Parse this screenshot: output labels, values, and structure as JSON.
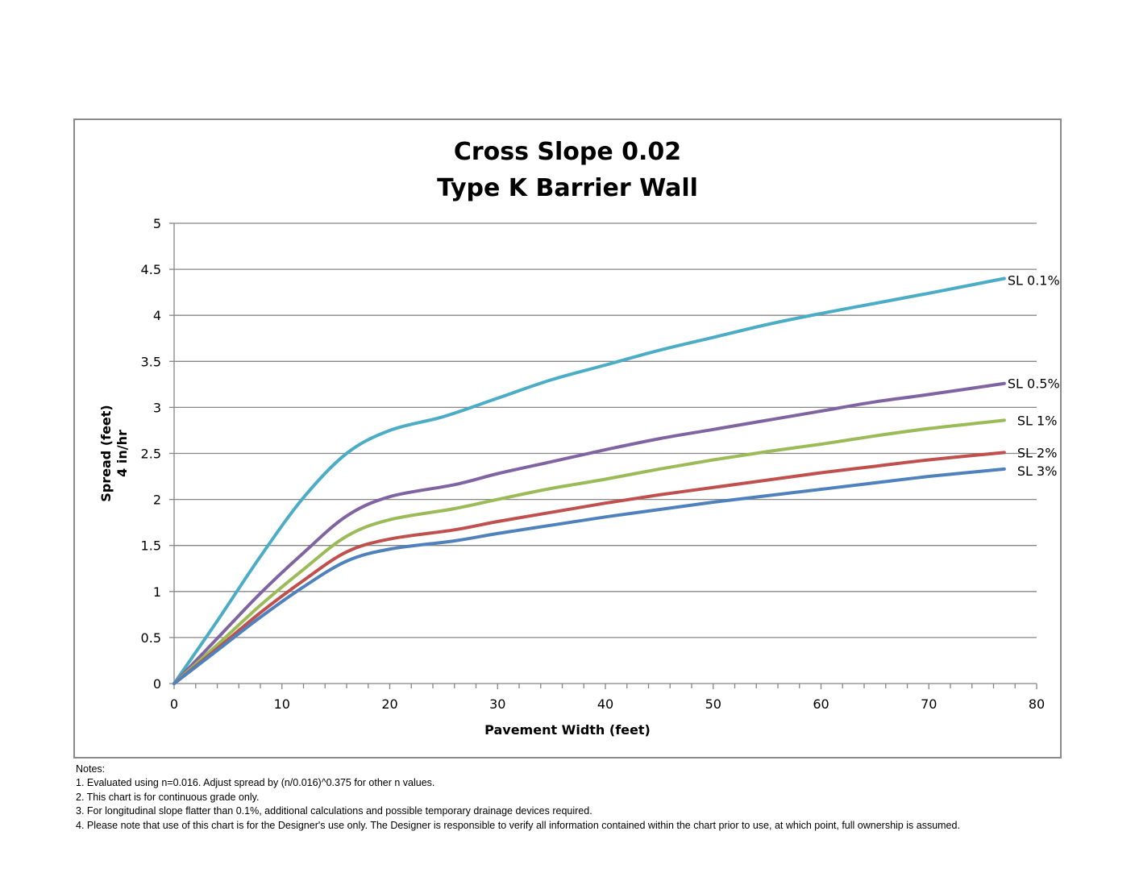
{
  "chart_data": {
    "type": "line",
    "title": [
      "Cross Slope 0.02",
      "Type K Barrier Wall"
    ],
    "xlabel": "Pavement Width (feet)",
    "ylabel": [
      "Spread (feet)",
      "4 in/hr"
    ],
    "xlim": [
      0,
      80
    ],
    "ylim": [
      0,
      5
    ],
    "x_ticks": [
      0,
      10,
      20,
      30,
      40,
      50,
      60,
      70,
      80
    ],
    "y_ticks": [
      0,
      0.5,
      1,
      1.5,
      2,
      2.5,
      3,
      3.5,
      4,
      4.5,
      5
    ],
    "x_tick_labels": [
      "0",
      "10",
      "20",
      "30",
      "40",
      "50",
      "60",
      "70",
      "80"
    ],
    "y_tick_labels": [
      "0",
      "0.5",
      "1",
      "1.5",
      "2",
      "2.5",
      "3",
      "3.5",
      "4",
      "4.5",
      "5"
    ],
    "x_minor_step": 2,
    "grid": "horizontal major",
    "legend": "inline labels at line ends",
    "series": [
      {
        "name": "SL 0.1%",
        "color": "#4bacc6",
        "x": [
          0,
          4,
          8,
          12,
          16,
          20,
          25,
          30,
          35,
          40,
          45,
          50,
          55,
          60,
          65,
          70,
          77
        ],
        "y": [
          0,
          0.68,
          1.38,
          2.02,
          2.5,
          2.75,
          2.9,
          3.1,
          3.3,
          3.46,
          3.62,
          3.76,
          3.9,
          4.02,
          4.13,
          4.24,
          4.4
        ]
      },
      {
        "name": "SL 0.5%",
        "color": "#8064a2",
        "x": [
          0,
          4,
          8,
          12,
          16,
          20,
          26,
          30,
          35,
          40,
          45,
          50,
          55,
          60,
          65,
          70,
          77
        ],
        "y": [
          0,
          0.49,
          0.98,
          1.42,
          1.82,
          2.03,
          2.16,
          2.28,
          2.41,
          2.54,
          2.66,
          2.76,
          2.86,
          2.96,
          3.06,
          3.14,
          3.26
        ]
      },
      {
        "name": "SL 1%",
        "color": "#9bbb59",
        "x": [
          0,
          4,
          8,
          12,
          16,
          20,
          26,
          30,
          35,
          40,
          45,
          50,
          55,
          60,
          65,
          70,
          77
        ],
        "y": [
          0,
          0.42,
          0.85,
          1.24,
          1.6,
          1.78,
          1.9,
          2.0,
          2.12,
          2.22,
          2.33,
          2.43,
          2.52,
          2.6,
          2.69,
          2.77,
          2.86
        ]
      },
      {
        "name": "SL 2%",
        "color": "#c0504d",
        "x": [
          0,
          4,
          8,
          12,
          16,
          20,
          26,
          30,
          35,
          40,
          45,
          50,
          55,
          60,
          65,
          70,
          77
        ],
        "y": [
          0,
          0.38,
          0.77,
          1.12,
          1.43,
          1.57,
          1.67,
          1.76,
          1.86,
          1.96,
          2.05,
          2.13,
          2.21,
          2.29,
          2.36,
          2.43,
          2.51
        ]
      },
      {
        "name": "SL 3%",
        "color": "#4f81bd",
        "x": [
          0,
          4,
          8,
          12,
          16,
          20,
          26,
          30,
          35,
          40,
          45,
          50,
          55,
          60,
          65,
          70,
          77
        ],
        "y": [
          0,
          0.36,
          0.72,
          1.05,
          1.33,
          1.46,
          1.55,
          1.63,
          1.72,
          1.81,
          1.89,
          1.97,
          2.04,
          2.11,
          2.18,
          2.25,
          2.33
        ]
      }
    ],
    "grid_color": "#868686",
    "axis_color": "#868686"
  },
  "notes": {
    "heading": "Notes:",
    "items": [
      "1.  Evaluated using n=0.016.  Adjust spread by (n/0.016)^0.375 for other n values.",
      "2.  This chart is for continuous grade only.",
      "3.  For longitudinal slope flatter than 0.1%, additional calculations and possible temporary drainage devices required.",
      "4.  Please note that use of this chart is for the Designer's use only.  The Designer is responsible to verify all information contained within the chart prior to use, at which point, full ownership is assumed."
    ]
  }
}
